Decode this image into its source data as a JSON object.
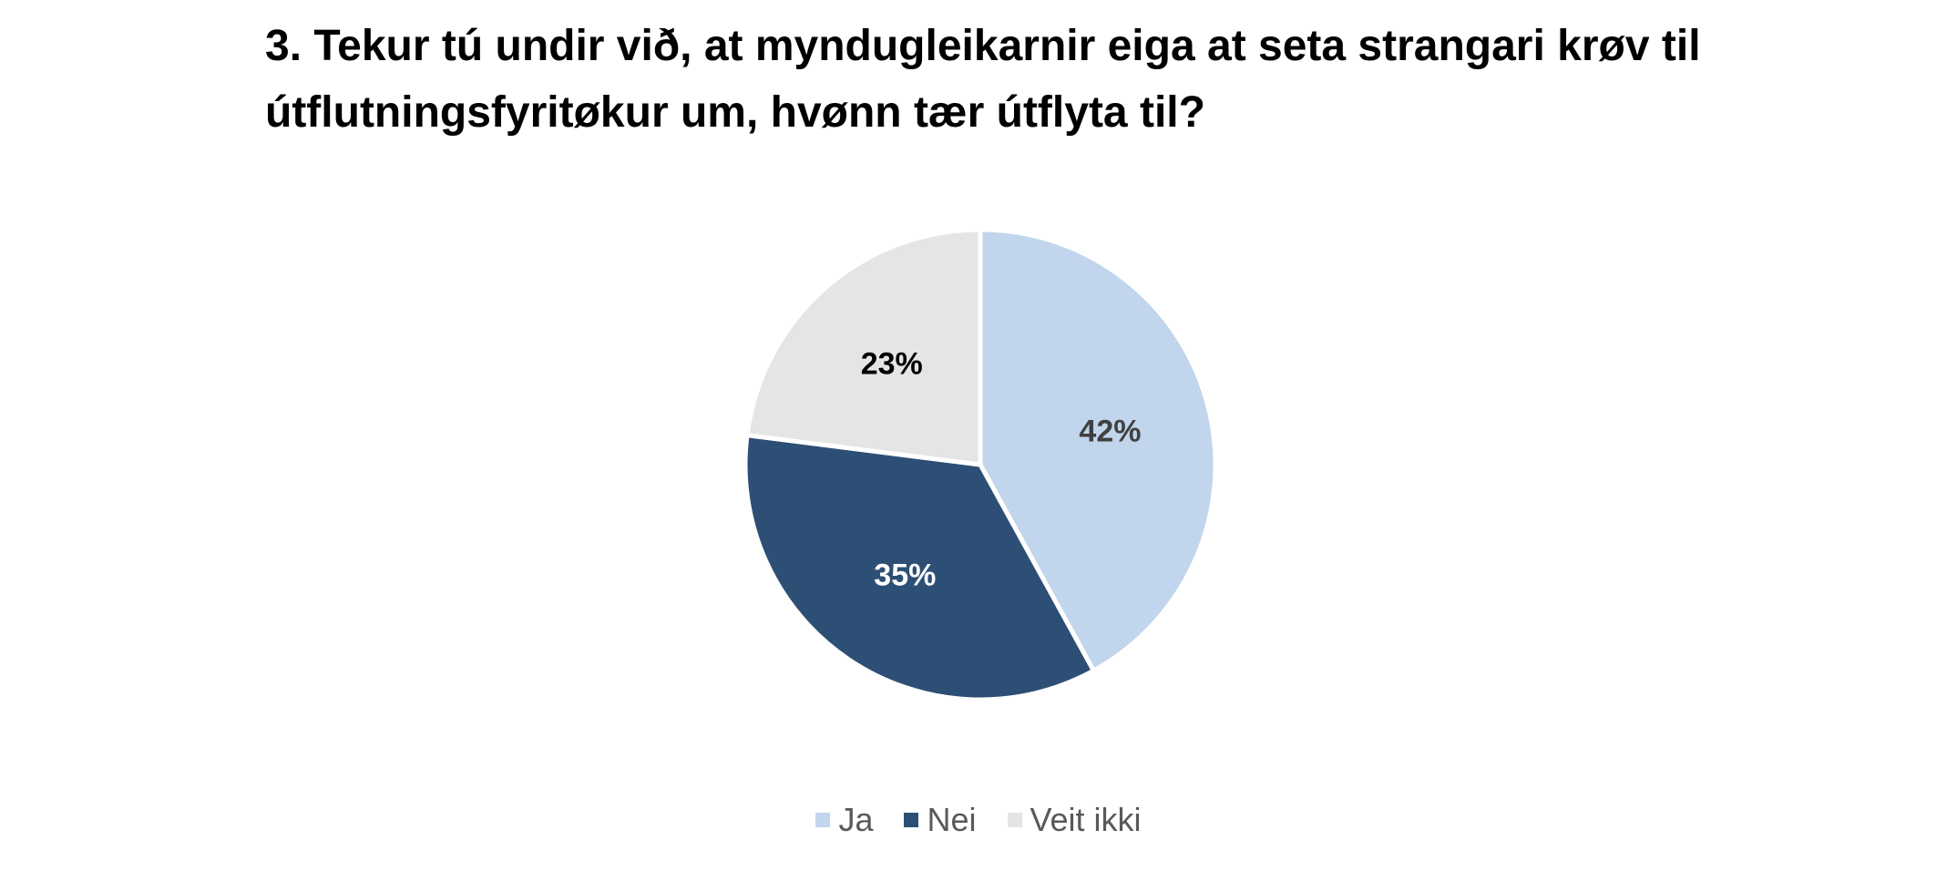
{
  "chart_data": {
    "type": "pie",
    "title": "3. Tekur tú undir við, at myndugleikarnir eiga at seta strangari krøv til útflutningsfyritøkur um, hvønn tær útflyta til?",
    "slices": [
      {
        "label": "Ja",
        "value": 42,
        "display": "42%",
        "color": "#c1d5ec",
        "label_color": "#404040"
      },
      {
        "label": "Nei",
        "value": 35,
        "display": "35%",
        "color": "#2e4f75",
        "label_color": "#ffffff"
      },
      {
        "label": "Veit ikki",
        "value": 23,
        "display": "23%",
        "color": "#e6e5e6",
        "label_color": "#000000"
      }
    ],
    "start_angle_deg": 0,
    "direction": "clockwise",
    "legend_position": "bottom"
  }
}
